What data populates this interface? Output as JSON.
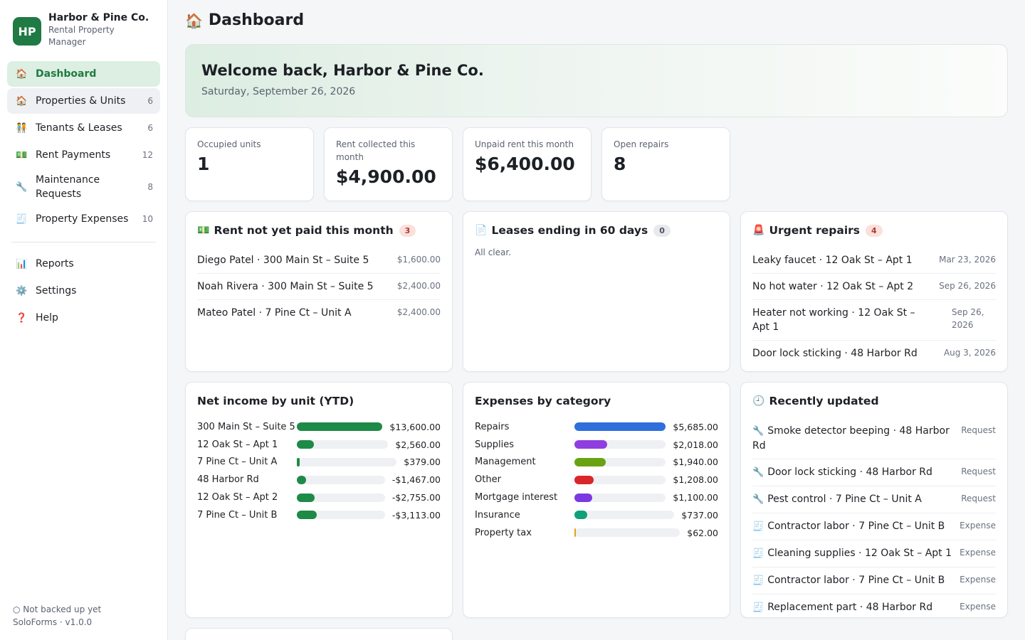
{
  "brand": {
    "logo": "HP",
    "name": "Harbor & Pine Co.",
    "subtitle": "Rental Property Manager"
  },
  "nav": {
    "items": [
      {
        "icon": "🏠",
        "icon_name": "house-icon",
        "label": "Dashboard",
        "count": ""
      },
      {
        "icon": "🏠",
        "icon_name": "house-icon",
        "label": "Properties & Units",
        "count": "6"
      },
      {
        "icon": "🧑‍🤝‍🧑",
        "icon_name": "people-icon",
        "label": "Tenants & Leases",
        "count": "6"
      },
      {
        "icon": "💵",
        "icon_name": "money-icon",
        "label": "Rent Payments",
        "count": "12"
      },
      {
        "icon": "🔧",
        "icon_name": "wrench-icon",
        "label": "Maintenance Requests",
        "count": "8"
      },
      {
        "icon": "🧾",
        "icon_name": "receipt-icon",
        "label": "Property Expenses",
        "count": "10"
      }
    ],
    "secondary": [
      {
        "icon": "📊",
        "icon_name": "chart-icon",
        "label": "Reports"
      },
      {
        "icon": "⚙️",
        "icon_name": "gear-icon",
        "label": "Settings"
      },
      {
        "icon": "❓",
        "icon_name": "help-icon",
        "label": "Help"
      }
    ]
  },
  "footer": {
    "backup_status": "○ Not backed up yet",
    "version": "SoloForms · v1.0.0"
  },
  "header": {
    "icon": "🏠",
    "title": "Dashboard"
  },
  "welcome": {
    "title": "Welcome back, Harbor & Pine Co.",
    "date": "Saturday, September 26, 2026"
  },
  "kpis": [
    {
      "label": "Occupied units",
      "value": "1"
    },
    {
      "label": "Rent collected this month",
      "value": "$4,900.00"
    },
    {
      "label": "Unpaid rent this month",
      "value": "$6,400.00"
    },
    {
      "label": "Open repairs",
      "value": "8"
    }
  ],
  "unpaid": {
    "icon": "💵",
    "title": "Rent not yet paid this month",
    "count": "3",
    "rows": [
      {
        "text": "Diego Patel · 300 Main St – Suite 5",
        "amount": "$1,600.00"
      },
      {
        "text": "Noah Rivera · 300 Main St – Suite 5",
        "amount": "$2,400.00"
      },
      {
        "text": "Mateo Patel · 7 Pine Ct – Unit A",
        "amount": "$2,400.00"
      }
    ]
  },
  "leases": {
    "icon": "📄",
    "title": "Leases ending in 60 days",
    "count": "0",
    "empty": "All clear."
  },
  "urgent": {
    "icon": "🚨",
    "title": "Urgent repairs",
    "count": "4",
    "rows": [
      {
        "text": "Leaky faucet · 12 Oak St – Apt 1",
        "date": "Mar 23, 2026"
      },
      {
        "text": "No hot water · 12 Oak St – Apt 2",
        "date": "Sep 26, 2026"
      },
      {
        "text": "Heater not working · 12 Oak St – Apt 1",
        "date": "Sep 26, 2026"
      },
      {
        "text": "Door lock sticking · 48 Harbor Rd",
        "date": "Aug 3, 2026"
      }
    ]
  },
  "net_income": {
    "title": "Net income by unit (YTD)",
    "color": "#1e8a47",
    "rows": [
      {
        "label": "300 Main St – Suite 5",
        "value": "$13,600.00",
        "fraction": 1.0
      },
      {
        "label": "12 Oak St – Apt 1",
        "value": "$2,560.00",
        "fraction": 0.19
      },
      {
        "label": "7 Pine Ct – Unit A",
        "value": "$379.00",
        "fraction": 0.028
      },
      {
        "label": "48 Harbor Rd",
        "value": "-$1,467.00",
        "fraction": 0.108
      },
      {
        "label": "12 Oak St – Apt 2",
        "value": "-$2,755.00",
        "fraction": 0.203
      },
      {
        "label": "7 Pine Ct – Unit B",
        "value": "-$3,113.00",
        "fraction": 0.229
      }
    ]
  },
  "expenses": {
    "title": "Expenses by category",
    "rows": [
      {
        "label": "Repairs",
        "value": "$5,685.00",
        "fraction": 1.0,
        "color": "#2f6fdc"
      },
      {
        "label": "Supplies",
        "value": "$2,018.00",
        "fraction": 0.355,
        "color": "#8f3ee0"
      },
      {
        "label": "Management",
        "value": "$1,940.00",
        "fraction": 0.341,
        "color": "#6aa312"
      },
      {
        "label": "Other",
        "value": "$1,208.00",
        "fraction": 0.212,
        "color": "#d9262a"
      },
      {
        "label": "Mortgage interest",
        "value": "$1,100.00",
        "fraction": 0.193,
        "color": "#7a39e0"
      },
      {
        "label": "Insurance",
        "value": "$737.00",
        "fraction": 0.13,
        "color": "#10a07a"
      },
      {
        "label": "Property tax",
        "value": "$62.00",
        "fraction": 0.011,
        "color": "#e0a21a"
      }
    ]
  },
  "recent": {
    "icon": "🕘",
    "title": "Recently updated",
    "rows": [
      {
        "icon": "🔧",
        "text": "Smoke detector beeping · 48 Harbor Rd",
        "type": "Request"
      },
      {
        "icon": "🔧",
        "text": "Door lock sticking · 48 Harbor Rd",
        "type": "Request"
      },
      {
        "icon": "🔧",
        "text": "Pest control · 7 Pine Ct – Unit A",
        "type": "Request"
      },
      {
        "icon": "🧾",
        "text": "Contractor labor · 7 Pine Ct – Unit B",
        "type": "Expense"
      },
      {
        "icon": "🧾",
        "text": "Cleaning supplies · 12 Oak St – Apt 1",
        "type": "Expense"
      },
      {
        "icon": "🧾",
        "text": "Contractor labor · 7 Pine Ct – Unit B",
        "type": "Expense"
      },
      {
        "icon": "🧾",
        "text": "Replacement part · 48 Harbor Rd",
        "type": "Expense"
      }
    ]
  }
}
